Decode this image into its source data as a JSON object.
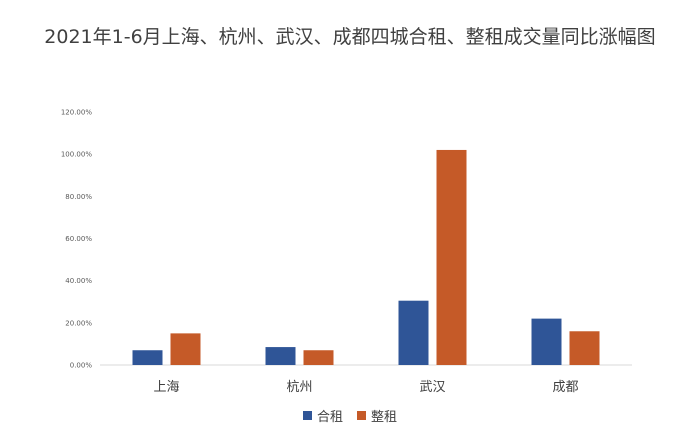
{
  "chart_data": {
    "type": "bar",
    "title": "2021年1-6月上海、杭州、武汉、成都四城合租、整租成交量同比涨幅图",
    "categories": [
      "上海",
      "杭州",
      "武汉",
      "成都"
    ],
    "series": [
      {
        "name": "合租",
        "color": "#2F5597",
        "values": [
          7.0,
          8.5,
          30.5,
          22.0
        ]
      },
      {
        "name": "整租",
        "color": "#C55A28",
        "values": [
          15.0,
          7.0,
          102.0,
          16.0
        ]
      }
    ],
    "ylim": [
      0,
      120
    ],
    "yticks": [
      "0.00%",
      "20.00%",
      "40.00%",
      "60.00%",
      "80.00%",
      "100.00%",
      "120.00%"
    ],
    "grid": false,
    "legend_position": "bottom"
  }
}
